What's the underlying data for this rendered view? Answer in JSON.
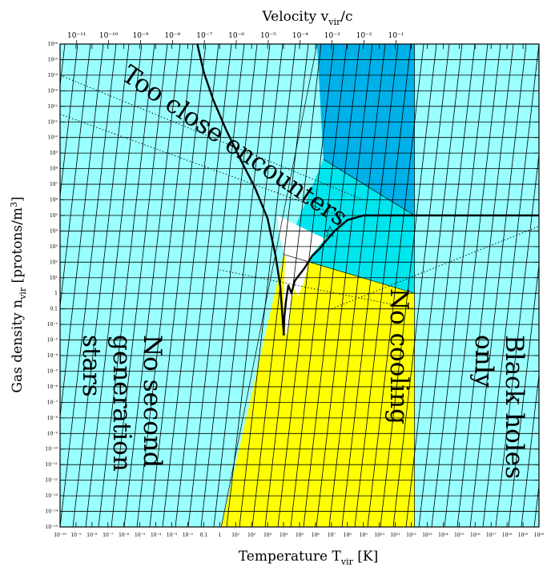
{
  "chart_data": {
    "type": "area",
    "title": "",
    "xlabel": {
      "text": "Temperature T",
      "sub": "vir",
      "unit": " [K]"
    },
    "ylabel": {
      "text": "Gas density n",
      "sub": "vir",
      "unit": " [protons/m",
      "sup": "3",
      "close": "]"
    },
    "top_axis_label": {
      "text": "Velocity v",
      "sub": "vir",
      "unit": "/c"
    },
    "xlim_log10": [
      -10,
      20
    ],
    "ylim_log10": [
      -15,
      16
    ],
    "x_scale": "log",
    "y_scale": "log",
    "x_ticks": [
      "10⁻¹⁰",
      "10⁻⁹",
      "10⁻⁸",
      "10⁻⁷",
      "10⁻⁶",
      "10⁻⁵",
      "10⁻⁴",
      "10⁻³",
      "10⁻²",
      "0.1",
      "1",
      "10¹",
      "10²",
      "10³",
      "10⁴",
      "10⁵",
      "10⁶",
      "10⁷",
      "10⁸",
      "10⁹",
      "10¹⁰",
      "10¹¹",
      "10¹²",
      "10¹³",
      "10¹⁴",
      "10¹⁵",
      "10¹⁶",
      "10¹⁷",
      "10¹⁸",
      "10¹⁹",
      "10²⁰"
    ],
    "y_ticks": [
      "10⁻¹⁵",
      "10⁻¹⁴",
      "10⁻¹³",
      "10⁻¹²",
      "10⁻¹¹",
      "10⁻¹⁰",
      "10⁻⁹",
      "10⁻⁸",
      "10⁻⁷",
      "10⁻⁶",
      "10⁻⁵",
      "10⁻⁴",
      "10⁻³",
      "10⁻²",
      "0.1",
      "1",
      "10¹",
      "10²",
      "10³",
      "10⁴",
      "10⁵",
      "10⁶",
      "10⁷",
      "10⁸",
      "10⁹",
      "10¹⁰",
      "10¹¹",
      "10¹²",
      "10¹³",
      "10¹⁴",
      "10¹⁵",
      "10¹⁶"
    ],
    "top_ticks": [
      {
        "label": "10⁻¹¹",
        "log_v": -11
      },
      {
        "label": "10⁻¹⁰",
        "log_v": -10
      },
      {
        "label": "10⁻⁹",
        "log_v": -9
      },
      {
        "label": "10⁻⁸",
        "log_v": -8
      },
      {
        "label": "10⁻⁷",
        "log_v": -7
      },
      {
        "label": "10⁻⁶",
        "log_v": -6
      },
      {
        "label": "10⁻⁵",
        "log_v": -5
      },
      {
        "label": "10⁻⁴",
        "log_v": -4
      },
      {
        "label": "10⁻³",
        "log_v": -3
      },
      {
        "label": "10⁻²",
        "log_v": -2
      },
      {
        "label": "10⁻¹",
        "log_v": -1
      }
    ],
    "colors": {
      "background": "#99ffff",
      "yellow": "#ffff00",
      "cyan": "#00e5ee",
      "blue": "#00b0e8",
      "white": "#ffffff",
      "hatch": "#000000"
    },
    "regions": [
      {
        "name": "no-cooling",
        "color": "yellow",
        "points": [
          [
            0.1,
            -15
          ],
          [
            12.2,
            -15
          ],
          [
            12.2,
            0
          ],
          [
            4.0,
            2.5
          ]
        ]
      },
      {
        "name": "close-encounters",
        "color": "cyan",
        "points": [
          [
            4.0,
            2.5
          ],
          [
            12.2,
            0
          ],
          [
            12.2,
            5
          ],
          [
            6.5,
            8.6
          ]
        ]
      },
      {
        "name": "dense",
        "color": "blue",
        "points": [
          [
            6.5,
            8.6
          ],
          [
            12.2,
            5
          ],
          [
            12.2,
            16
          ],
          [
            6.1,
            16
          ]
        ]
      },
      {
        "name": "galaxies",
        "color": "white",
        "points": [
          [
            3.6,
            5
          ],
          [
            6.6,
            3.5
          ],
          [
            5.7,
            2.4
          ],
          [
            5.5,
            1.6
          ],
          [
            5.2,
            0.5
          ],
          [
            4.9,
            -0.2
          ],
          [
            4.7,
            0.3
          ],
          [
            4.5,
            -0.4
          ],
          [
            4.3,
            -2.5
          ],
          [
            4.15,
            -2.7
          ],
          [
            4.0,
            -0.5
          ],
          [
            4.1,
            2.3
          ],
          [
            3.7,
            3.8
          ]
        ]
      }
    ],
    "series": [
      {
        "type": "cooling-curve",
        "points": [
          [
            4.0,
            -2.7
          ],
          [
            4.05,
            -1.5
          ],
          [
            4.15,
            -0.5
          ],
          [
            4.3,
            0.5
          ],
          [
            4.5,
            0.0
          ],
          [
            4.7,
            0.8
          ],
          [
            5.0,
            1.2
          ],
          [
            5.3,
            1.6
          ],
          [
            5.8,
            2.4
          ],
          [
            6.3,
            2.9
          ],
          [
            6.6,
            3.3
          ],
          [
            7.2,
            4.0
          ],
          [
            8.0,
            4.7
          ],
          [
            9.0,
            5.0
          ],
          [
            12.2,
            5.0
          ],
          [
            20,
            5.0
          ]
        ]
      },
      {
        "type": "boundary-curve",
        "points": [
          [
            -1.4,
            16
          ],
          [
            -1.0,
            14.2
          ],
          [
            -0.4,
            12.4
          ],
          [
            0.4,
            10.5
          ],
          [
            1.3,
            8.6
          ],
          [
            2.2,
            6.8
          ],
          [
            3.0,
            4.8
          ],
          [
            3.5,
            2.4
          ],
          [
            3.8,
            0.4
          ],
          [
            3.95,
            -1.8
          ],
          [
            4.02,
            -2.7
          ]
        ]
      },
      {
        "type": "dotted-lines",
        "lines": [
          [
            [
              -10,
              11.5
            ],
            [
              7.5,
              5.0
            ]
          ],
          [
            [
              -10,
              14
            ],
            [
              9.0,
              6.0
            ]
          ],
          [
            [
              7.0,
              -1.0
            ],
            [
              20,
              4.3
            ]
          ],
          [
            [
              0,
              1.5
            ],
            [
              12.2,
              -1.0
            ]
          ]
        ]
      }
    ],
    "annotations": [
      {
        "text": "Too close encounters"
      },
      {
        "text": "No cooling"
      },
      {
        "text": "No second generation stars"
      },
      {
        "text": "Black holes only"
      },
      {
        "text": "☆"
      }
    ]
  }
}
